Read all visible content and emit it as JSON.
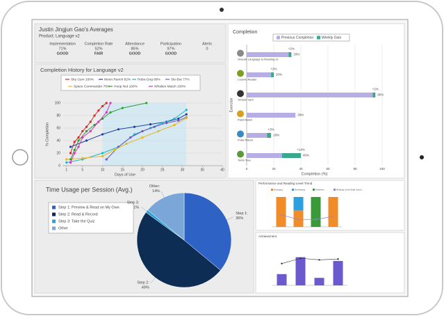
{
  "averages": {
    "title": "Justin Jingjun Gao's Averages",
    "subtitle": "Product: Language v2",
    "metrics": [
      {
        "label": "Implementation",
        "value": "71%",
        "status": "GOOD",
        "color": "#5a8a1a"
      },
      {
        "label": "Completion Rate",
        "value": "52%",
        "status": "FAIR",
        "color": "#e08a1a"
      },
      {
        "label": "Attendance",
        "value": "85%",
        "status": "GOOD",
        "color": "#5a8a1a"
      },
      {
        "label": "Participation",
        "value": "97%",
        "status": "GOOD",
        "color": "#5a8a1a"
      },
      {
        "label": "Alerts",
        "value": "0"
      }
    ]
  },
  "chart_data": [
    {
      "type": "line",
      "title": "Completion History for Language v2",
      "xlabel": "Days of Use",
      "ylabel": "% Completion",
      "xlim": [
        0,
        40
      ],
      "xticks": [
        1,
        5,
        10,
        15,
        20,
        25,
        30,
        35,
        40
      ],
      "ylim": [
        0,
        100
      ],
      "yticks": [
        0,
        20,
        40,
        60,
        80,
        100
      ],
      "grid": true,
      "highlight_x": [
        10,
        31
      ],
      "series": [
        {
          "name": "Sky Gym 100%",
          "color": "#d62728",
          "x": [
            2,
            3,
            4,
            5,
            6,
            7,
            8,
            9,
            10,
            11
          ],
          "values": [
            20,
            38,
            45,
            55,
            62,
            70,
            80,
            88,
            95,
            100
          ]
        },
        {
          "name": "Moon Ranch 82%",
          "color": "#1f3f9f",
          "x": [
            2,
            6,
            10,
            14,
            18,
            22,
            26,
            29,
            31
          ],
          "values": [
            30,
            40,
            50,
            58,
            62,
            66,
            70,
            75,
            82
          ]
        },
        {
          "name": "Robo-Dog 89%",
          "color": "#17b8c8",
          "x": [
            1,
            5,
            10,
            14,
            18,
            22,
            25,
            28,
            31
          ],
          "values": [
            5,
            10,
            20,
            30,
            50,
            60,
            68,
            75,
            89
          ]
        },
        {
          "name": "Sle-Bot 77%",
          "color": "#7b4fbf",
          "x": [
            11,
            14,
            17,
            20,
            23,
            26,
            29,
            31
          ],
          "values": [
            10,
            30,
            45,
            55,
            62,
            68,
            72,
            77
          ]
        },
        {
          "name": "Space Commander 76%",
          "color": "#e8b820",
          "x": [
            1,
            5,
            10,
            13,
            16,
            20,
            24,
            28,
            31
          ],
          "values": [
            10,
            12,
            15,
            25,
            35,
            45,
            55,
            65,
            76
          ]
        },
        {
          "name": "Hoop Nut 100%",
          "color": "#2ca02c",
          "x": [
            2,
            3,
            4,
            6,
            8,
            10,
            12,
            15,
            21
          ],
          "values": [
            10,
            25,
            40,
            55,
            65,
            75,
            85,
            92,
            100
          ]
        },
        {
          "name": "Whalien Match 100%",
          "color": "#d633c8",
          "x": [
            2,
            3,
            4,
            5,
            7,
            9,
            11,
            12
          ],
          "values": [
            5,
            20,
            30,
            45,
            55,
            70,
            85,
            100
          ]
        }
      ]
    },
    {
      "type": "hbar",
      "title": "Completion",
      "xlabel": "Completion (%)",
      "ylabel": "Exercise",
      "categories": [
        "Overall: Language to Reading v2",
        "Cosmic Reader",
        "Jumper Gym",
        "Paint Match",
        "Polar Planet",
        "Tomb Tree"
      ],
      "xlim": [
        0,
        100
      ],
      "xticks": [
        0,
        20,
        40,
        60,
        80,
        100
      ],
      "grid": true,
      "series": [
        {
          "name": "Previous Completion",
          "color": "#b7aee6",
          "values": [
            31,
            18,
            93,
            36,
            15,
            26
          ]
        },
        {
          "name": "Weekly Gain",
          "color": "#3aa88f",
          "values": [
            2,
            2,
            2,
            0,
            3,
            14
          ],
          "value_labels": [
            "+2%",
            "+2%",
            "+2%",
            null,
            "+3%",
            "+14%"
          ]
        }
      ],
      "total_labels": [
        "33%",
        "20%",
        "95%",
        "36%",
        "18%",
        "40%"
      ]
    },
    {
      "type": "pie",
      "title": "Time Usage per Session (Avg.)",
      "categories": [
        "Step 1: Preview & Read on My Own",
        "Step 2: Read & Record",
        "Step 3: Take the Quiz",
        "Other"
      ],
      "label_names": [
        "Step 1:",
        "Step 2:",
        "Step 3:",
        "Other:"
      ],
      "values": [
        36,
        49,
        1,
        14
      ],
      "value_labels": [
        "36%",
        "49%",
        "1%",
        "14%"
      ],
      "colors": [
        "#2e62c4",
        "#0d2d55",
        "#29a3d8",
        "#7ba6d8"
      ]
    },
    {
      "type": "stacked",
      "title": "Performance and Reading Level Trend",
      "categories": [
        null,
        null,
        null,
        null
      ],
      "ylim": [
        0,
        100
      ],
      "y2lim": [
        0,
        10
      ],
      "series": [
        {
          "name": "Emerging",
          "color": "#f28c28",
          "values": [
            100,
            55,
            0,
            100
          ]
        },
        {
          "name": "Developing",
          "color": "#2aa0e0",
          "values": [
            0,
            45,
            0,
            0
          ]
        },
        {
          "name": "Proficient",
          "color": "#3a9a3a",
          "values": [
            0,
            0,
            100,
            0
          ]
        },
        {
          "name": "Reading Level (High Score)",
          "color": "#8a8ad8",
          "axis": "y2",
          "values": [
            4,
            2.5,
            2.5,
            3.5
          ]
        }
      ]
    },
    {
      "type": "barline",
      "title": "Achievement",
      "categories": [
        null,
        null,
        null,
        null
      ],
      "ylim": [
        0,
        100
      ],
      "series": [
        {
          "color": "#6a5acd",
          "values": [
            30,
            75,
            20,
            65
          ]
        },
        {
          "color": "#333333",
          "values": [
            58,
            72,
            68,
            70
          ]
        }
      ]
    }
  ]
}
